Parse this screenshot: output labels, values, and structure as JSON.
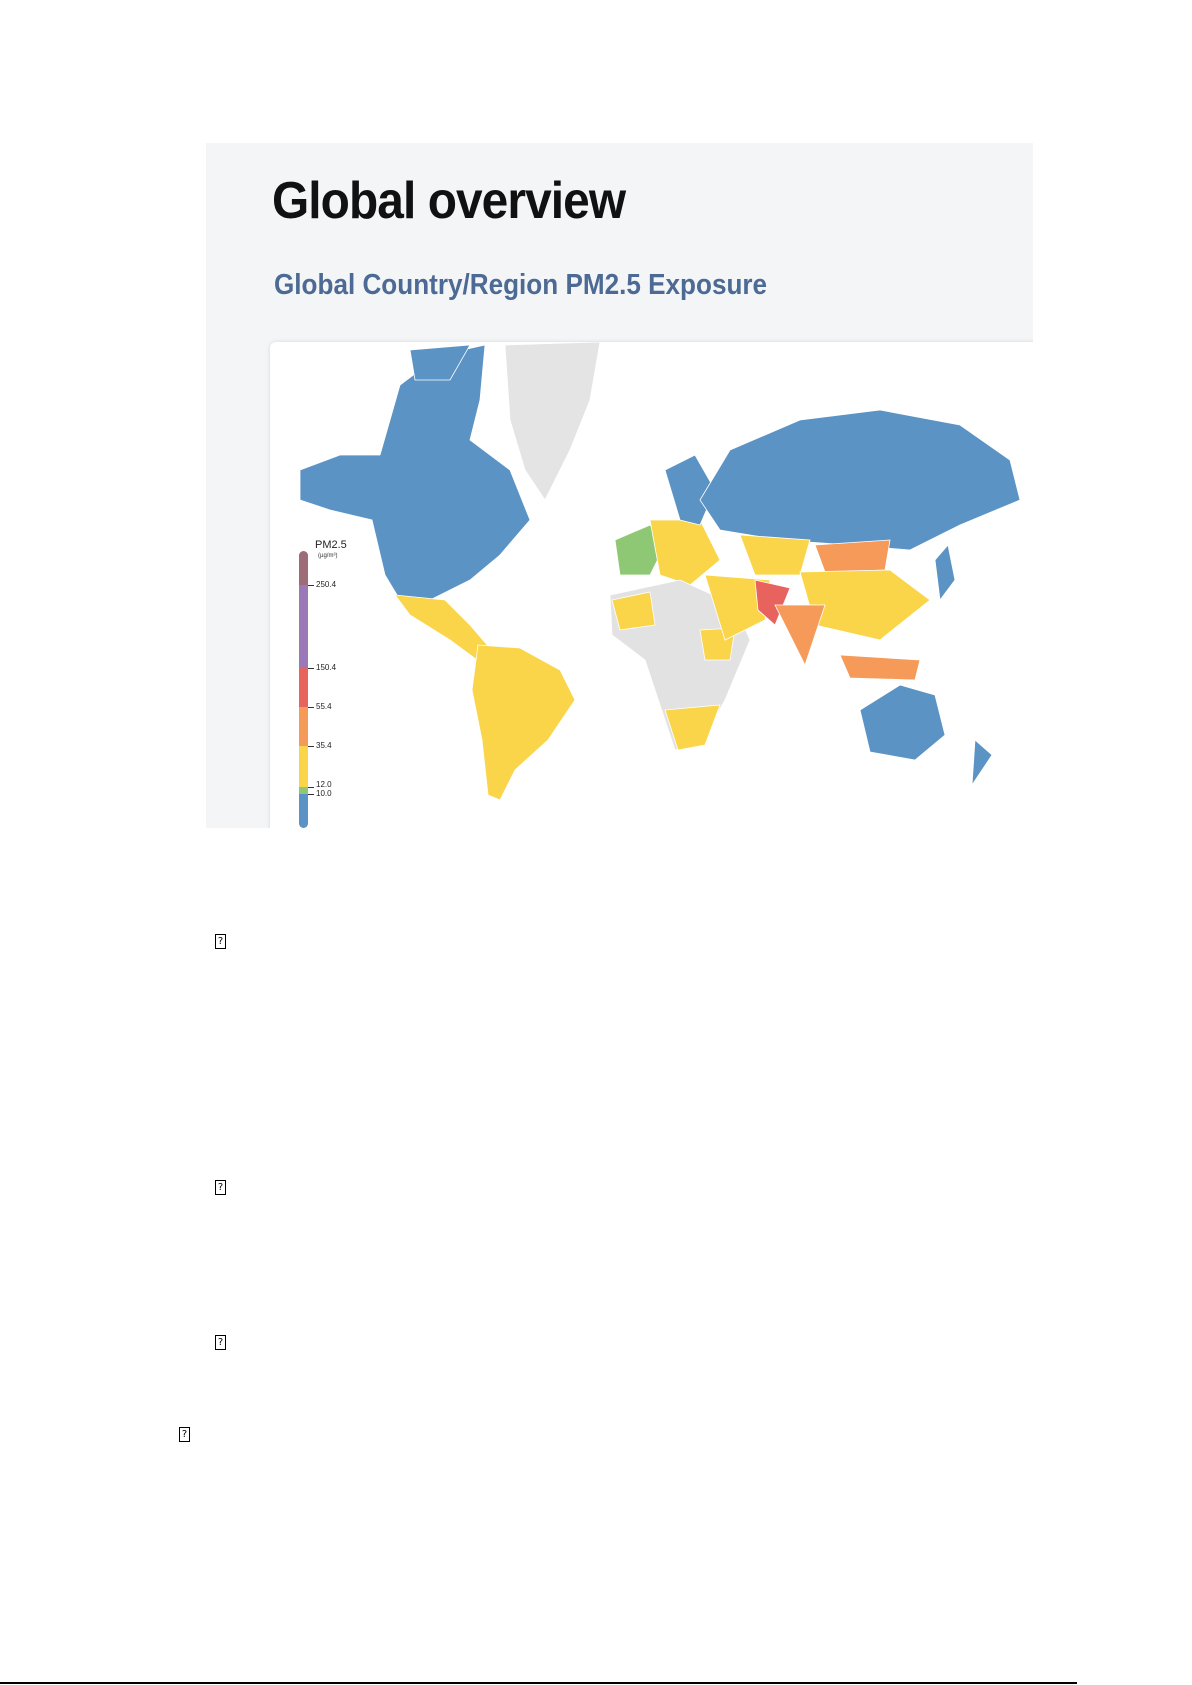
{
  "screenshot": {
    "title": "Global overview",
    "subtitle": "Global Country/Region PM2.5 Exposure",
    "legend": {
      "title": "PM2.5",
      "unit": "(µg/m³)",
      "breaks": [
        "250.4",
        "150.4",
        "55.4",
        "35.4",
        "12.0",
        "10.0"
      ],
      "colors": {
        "hazardous": "#9e6b78",
        "very_unhealthy": "#9b78b8",
        "unhealthy": "#e8625e",
        "unhealthy_sensitive": "#f59a58",
        "moderate": "#fad54a",
        "good_high": "#8fc874",
        "good": "#5b93c5",
        "no_data": "#e2e2e2"
      }
    }
  },
  "missing_glyphs": [
    "?",
    "?",
    "?",
    "?"
  ]
}
